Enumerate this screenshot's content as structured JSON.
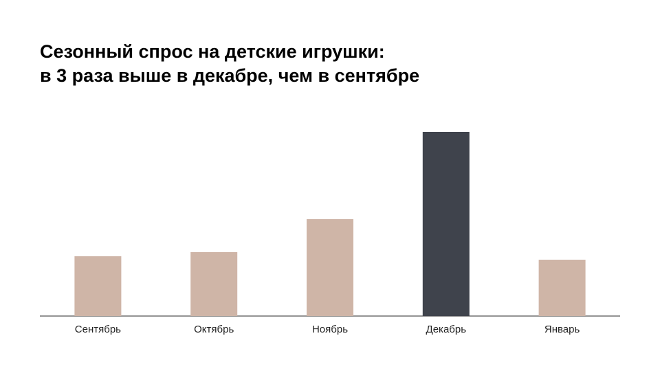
{
  "chart_data": {
    "type": "bar",
    "title": [
      "Сезонный спрос на детские игрушки:",
      "в 3 раза выше в декабре, чем в сентябре"
    ],
    "categories": [
      "Сентябрь",
      "Октябрь",
      "Ноябрь",
      "Декабрь",
      "Январь"
    ],
    "values": [
      87,
      93,
      141,
      268,
      82
    ],
    "colors": [
      "#cfb5a7",
      "#cfb5a7",
      "#cfb5a7",
      "#3f434c",
      "#cfb5a7"
    ]
  }
}
